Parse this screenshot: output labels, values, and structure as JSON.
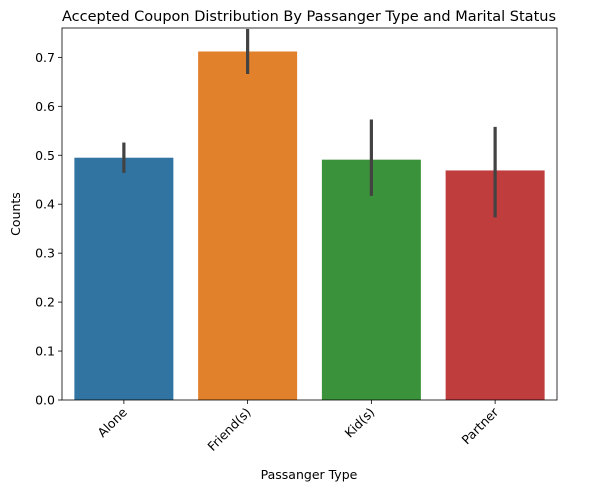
{
  "chart_data": {
    "type": "bar",
    "title": "Accepted Coupon Distribution By Passanger Type and Marital Status",
    "xlabel": "Passanger Type",
    "ylabel": "Counts",
    "categories": [
      "Alone",
      "Friend(s)",
      "Kid(s)",
      "Partner"
    ],
    "values": [
      0.495,
      0.712,
      0.491,
      0.469
    ],
    "error_low": [
      0.464,
      0.666,
      0.417,
      0.373
    ],
    "error_high": [
      0.526,
      0.758,
      0.573,
      0.558
    ],
    "colors": [
      "#3274a1",
      "#e1812c",
      "#3a923a",
      "#c03d3e"
    ],
    "error_color": "#424242",
    "ylim": [
      0,
      0.76
    ],
    "yticks": [
      "0.0",
      "0.1",
      "0.2",
      "0.3",
      "0.4",
      "0.5",
      "0.6",
      "0.7"
    ],
    "tick_label_rotation": -45,
    "grid": false,
    "legend": "none"
  }
}
